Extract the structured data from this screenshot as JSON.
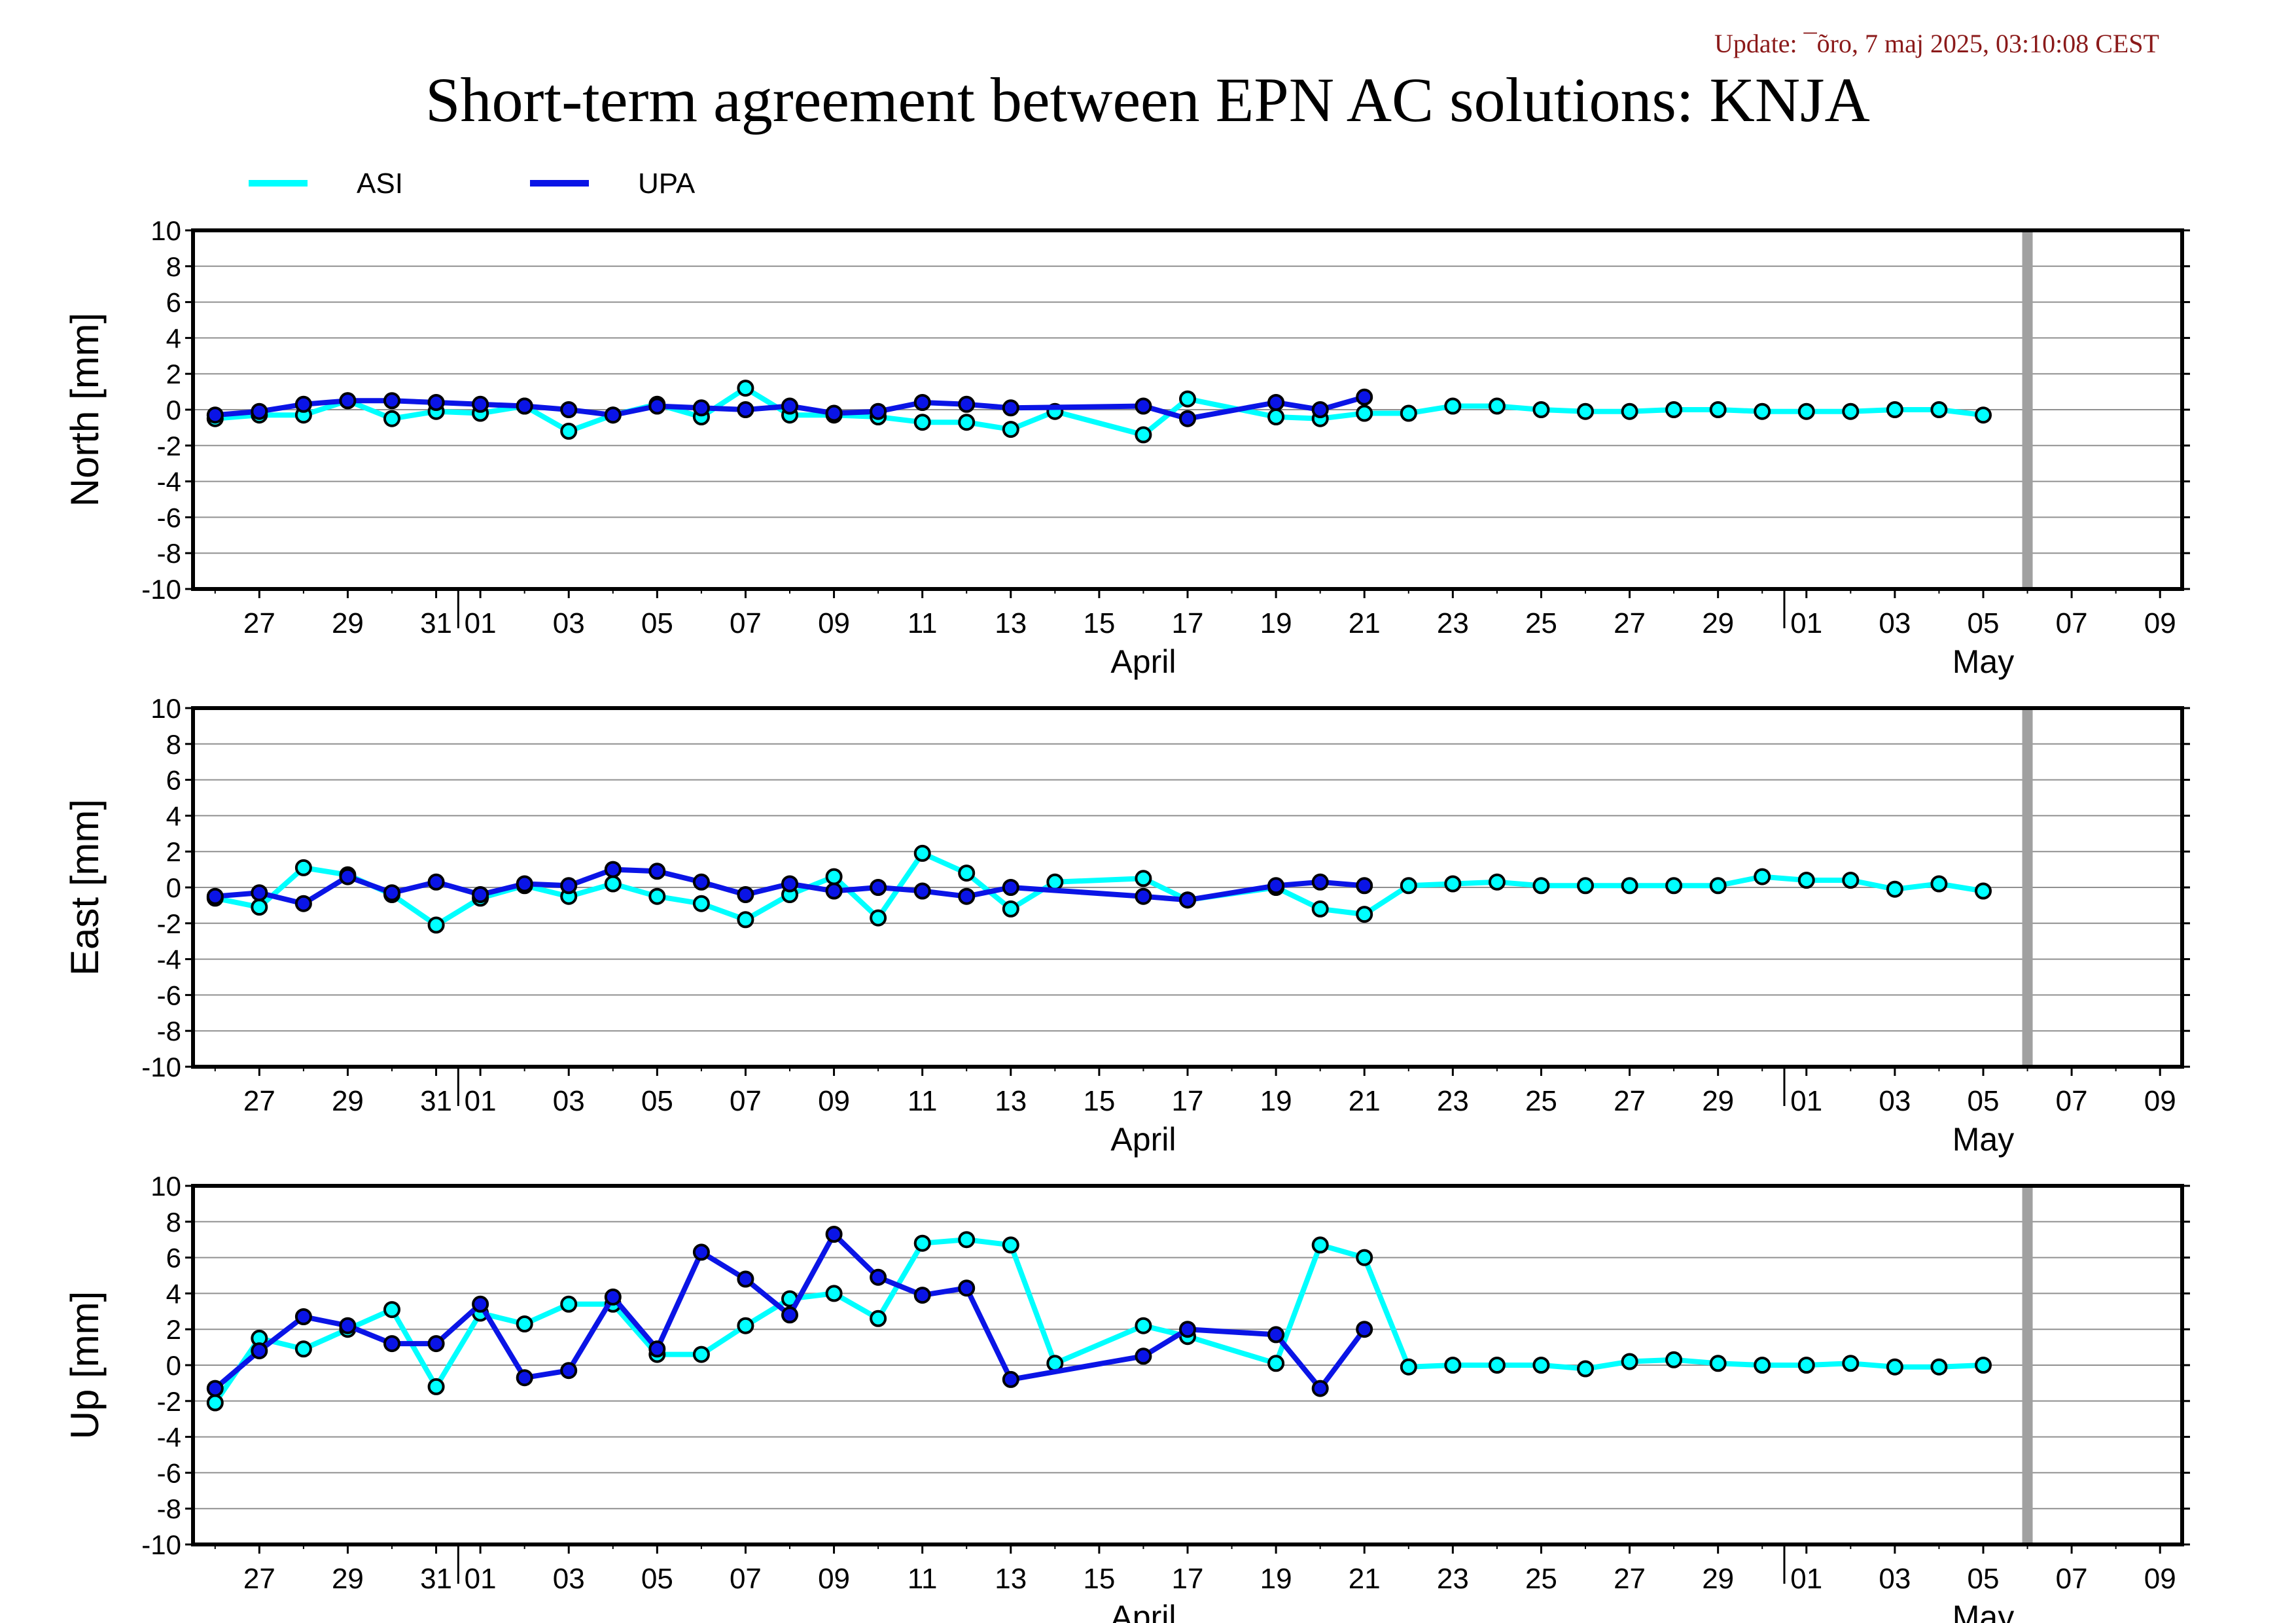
{
  "update_text": "Update: ¯õro, 7 maj 2025, 03:10:08 CEST",
  "title": "Short-term agreement between EPN AC solutions: KNJA",
  "colors": {
    "ASI": "#00ffff",
    "UPA": "#0a14e6",
    "today_marker": "#a0a0a0",
    "update_text": "#8b1a1a"
  },
  "legend": [
    {
      "name": "ASI",
      "color": "#00ffff"
    },
    {
      "name": "UPA",
      "color": "#0a14e6"
    }
  ],
  "chart_data": {
    "type": "line",
    "x_axis": {
      "range_start": "2025-03-25T12:00",
      "range_end": "2025-05-09T12:00",
      "tick_labels": [
        "27",
        "29",
        "31",
        "01",
        "03",
        "05",
        "07",
        "09",
        "11",
        "13",
        "15",
        "17",
        "19",
        "21",
        "23",
        "25",
        "27",
        "29",
        "01",
        "03",
        "05",
        "07",
        "09"
      ],
      "tick_dates": [
        "2025-03-27",
        "2025-03-29",
        "2025-03-31",
        "2025-04-01",
        "2025-04-03",
        "2025-04-05",
        "2025-04-07",
        "2025-04-09",
        "2025-04-11",
        "2025-04-13",
        "2025-04-15",
        "2025-04-17",
        "2025-04-19",
        "2025-04-21",
        "2025-04-23",
        "2025-04-25",
        "2025-04-27",
        "2025-04-29",
        "2025-05-01",
        "2025-05-03",
        "2025-05-05",
        "2025-05-07",
        "2025-05-09"
      ],
      "month_labels": [
        {
          "label": "April",
          "date": "2025-04-16"
        },
        {
          "label": "May",
          "date": "2025-05-05"
        }
      ],
      "month_boundaries": [
        "2025-04-01",
        "2025-05-01"
      ]
    },
    "today_marker": "2025-05-06",
    "ylim": [
      -10,
      10
    ],
    "ytick_labels": [
      "10",
      "8",
      "6",
      "4",
      "2",
      "0",
      "-2",
      "-4",
      "-6",
      "-8",
      "-10"
    ],
    "grid": true,
    "legend_position": "top-left",
    "panels": [
      {
        "ylabel": "North [mm]",
        "series": [
          {
            "name": "ASI",
            "points": [
              [
                "2025-03-26",
                -0.5
              ],
              [
                "2025-03-27",
                -0.3
              ],
              [
                "2025-03-28",
                -0.3
              ],
              [
                "2025-03-29",
                0.5
              ],
              [
                "2025-03-30",
                -0.5
              ],
              [
                "2025-03-31",
                -0.1
              ],
              [
                "2025-04-01",
                -0.2
              ],
              [
                "2025-04-02",
                0.2
              ],
              [
                "2025-04-03",
                -1.2
              ],
              [
                "2025-04-04",
                -0.3
              ],
              [
                "2025-04-05",
                0.3
              ],
              [
                "2025-04-06",
                -0.4
              ],
              [
                "2025-04-07",
                1.2
              ],
              [
                "2025-04-08",
                -0.3
              ],
              [
                "2025-04-09",
                -0.3
              ],
              [
                "2025-04-10",
                -0.4
              ],
              [
                "2025-04-11",
                -0.7
              ],
              [
                "2025-04-12",
                -0.7
              ],
              [
                "2025-04-13",
                -1.1
              ],
              [
                "2025-04-14",
                -0.1
              ],
              [
                "2025-04-16",
                -1.4
              ],
              [
                "2025-04-17",
                0.6
              ],
              [
                "2025-04-19",
                -0.4
              ],
              [
                "2025-04-20",
                -0.5
              ],
              [
                "2025-04-21",
                -0.2
              ],
              [
                "2025-04-22",
                -0.2
              ],
              [
                "2025-04-23",
                0.2
              ],
              [
                "2025-04-24",
                0.2
              ],
              [
                "2025-04-25",
                0.0
              ],
              [
                "2025-04-26",
                -0.1
              ],
              [
                "2025-04-27",
                -0.1
              ],
              [
                "2025-04-28",
                0.0
              ],
              [
                "2025-04-29",
                0.0
              ],
              [
                "2025-04-30",
                -0.1
              ],
              [
                "2025-05-01",
                -0.1
              ],
              [
                "2025-05-02",
                -0.1
              ],
              [
                "2025-05-03",
                0.0
              ],
              [
                "2025-05-04",
                0.0
              ],
              [
                "2025-05-05",
                -0.3
              ]
            ]
          },
          {
            "name": "UPA",
            "points": [
              [
                "2025-03-26",
                -0.3
              ],
              [
                "2025-03-27",
                -0.1
              ],
              [
                "2025-03-28",
                0.3
              ],
              [
                "2025-03-29",
                0.5
              ],
              [
                "2025-03-30",
                0.5
              ],
              [
                "2025-03-31",
                0.4
              ],
              [
                "2025-04-01",
                0.3
              ],
              [
                "2025-04-02",
                0.2
              ],
              [
                "2025-04-03",
                0.0
              ],
              [
                "2025-04-04",
                -0.3
              ],
              [
                "2025-04-05",
                0.2
              ],
              [
                "2025-04-06",
                0.1
              ],
              [
                "2025-04-07",
                0.0
              ],
              [
                "2025-04-08",
                0.2
              ],
              [
                "2025-04-09",
                -0.2
              ],
              [
                "2025-04-10",
                -0.1
              ],
              [
                "2025-04-11",
                0.4
              ],
              [
                "2025-04-12",
                0.3
              ],
              [
                "2025-04-13",
                0.1
              ],
              [
                "2025-04-16",
                0.2
              ],
              [
                "2025-04-17",
                -0.5
              ],
              [
                "2025-04-19",
                0.4
              ],
              [
                "2025-04-20",
                0.0
              ],
              [
                "2025-04-21",
                0.7
              ]
            ]
          }
        ]
      },
      {
        "ylabel": "East [mm]",
        "series": [
          {
            "name": "ASI",
            "points": [
              [
                "2025-03-26",
                -0.6
              ],
              [
                "2025-03-27",
                -1.1
              ],
              [
                "2025-03-28",
                1.1
              ],
              [
                "2025-03-29",
                0.7
              ],
              [
                "2025-03-30",
                -0.4
              ],
              [
                "2025-03-31",
                -2.1
              ],
              [
                "2025-04-01",
                -0.6
              ],
              [
                "2025-04-02",
                0.1
              ],
              [
                "2025-04-03",
                -0.5
              ],
              [
                "2025-04-04",
                0.2
              ],
              [
                "2025-04-05",
                -0.5
              ],
              [
                "2025-04-06",
                -0.9
              ],
              [
                "2025-04-07",
                -1.8
              ],
              [
                "2025-04-08",
                -0.4
              ],
              [
                "2025-04-09",
                0.6
              ],
              [
                "2025-04-10",
                -1.7
              ],
              [
                "2025-04-11",
                1.9
              ],
              [
                "2025-04-12",
                0.8
              ],
              [
                "2025-04-13",
                -1.2
              ],
              [
                "2025-04-14",
                0.3
              ],
              [
                "2025-04-16",
                0.5
              ],
              [
                "2025-04-17",
                -0.7
              ],
              [
                "2025-04-19",
                0.0
              ],
              [
                "2025-04-20",
                -1.2
              ],
              [
                "2025-04-21",
                -1.5
              ],
              [
                "2025-04-22",
                0.1
              ],
              [
                "2025-04-23",
                0.2
              ],
              [
                "2025-04-24",
                0.3
              ],
              [
                "2025-04-25",
                0.1
              ],
              [
                "2025-04-26",
                0.1
              ],
              [
                "2025-04-27",
                0.1
              ],
              [
                "2025-04-28",
                0.1
              ],
              [
                "2025-04-29",
                0.1
              ],
              [
                "2025-04-30",
                0.6
              ],
              [
                "2025-05-01",
                0.4
              ],
              [
                "2025-05-02",
                0.4
              ],
              [
                "2025-05-03",
                -0.1
              ],
              [
                "2025-05-04",
                0.2
              ],
              [
                "2025-05-05",
                -0.2
              ]
            ]
          },
          {
            "name": "UPA",
            "points": [
              [
                "2025-03-26",
                -0.5
              ],
              [
                "2025-03-27",
                -0.3
              ],
              [
                "2025-03-28",
                -0.9
              ],
              [
                "2025-03-29",
                0.6
              ],
              [
                "2025-03-30",
                -0.3
              ],
              [
                "2025-03-31",
                0.3
              ],
              [
                "2025-04-01",
                -0.4
              ],
              [
                "2025-04-02",
                0.2
              ],
              [
                "2025-04-03",
                0.1
              ],
              [
                "2025-04-04",
                1.0
              ],
              [
                "2025-04-05",
                0.9
              ],
              [
                "2025-04-06",
                0.3
              ],
              [
                "2025-04-07",
                -0.4
              ],
              [
                "2025-04-08",
                0.2
              ],
              [
                "2025-04-09",
                -0.2
              ],
              [
                "2025-04-10",
                0.0
              ],
              [
                "2025-04-11",
                -0.2
              ],
              [
                "2025-04-12",
                -0.5
              ],
              [
                "2025-04-13",
                0.0
              ],
              [
                "2025-04-16",
                -0.5
              ],
              [
                "2025-04-17",
                -0.7
              ],
              [
                "2025-04-19",
                0.1
              ],
              [
                "2025-04-20",
                0.3
              ],
              [
                "2025-04-21",
                0.1
              ]
            ]
          }
        ]
      },
      {
        "ylabel": "Up [mm]",
        "series": [
          {
            "name": "ASI",
            "points": [
              [
                "2025-03-26",
                -2.1
              ],
              [
                "2025-03-27",
                1.5
              ],
              [
                "2025-03-28",
                0.9
              ],
              [
                "2025-03-29",
                2.0
              ],
              [
                "2025-03-30",
                3.1
              ],
              [
                "2025-03-31",
                -1.2
              ],
              [
                "2025-04-01",
                2.9
              ],
              [
                "2025-04-02",
                2.3
              ],
              [
                "2025-04-03",
                3.4
              ],
              [
                "2025-04-04",
                3.4
              ],
              [
                "2025-04-05",
                0.6
              ],
              [
                "2025-04-06",
                0.6
              ],
              [
                "2025-04-07",
                2.2
              ],
              [
                "2025-04-08",
                3.7
              ],
              [
                "2025-04-09",
                4.0
              ],
              [
                "2025-04-10",
                2.6
              ],
              [
                "2025-04-11",
                6.8
              ],
              [
                "2025-04-12",
                7.0
              ],
              [
                "2025-04-13",
                6.7
              ],
              [
                "2025-04-14",
                0.1
              ],
              [
                "2025-04-16",
                2.2
              ],
              [
                "2025-04-17",
                1.6
              ],
              [
                "2025-04-19",
                0.1
              ],
              [
                "2025-04-20",
                6.7
              ],
              [
                "2025-04-21",
                6.0
              ],
              [
                "2025-04-22",
                -0.1
              ],
              [
                "2025-04-23",
                0.0
              ],
              [
                "2025-04-24",
                0.0
              ],
              [
                "2025-04-25",
                0.0
              ],
              [
                "2025-04-26",
                -0.2
              ],
              [
                "2025-04-27",
                0.2
              ],
              [
                "2025-04-28",
                0.3
              ],
              [
                "2025-04-29",
                0.1
              ],
              [
                "2025-04-30",
                0.0
              ],
              [
                "2025-05-01",
                0.0
              ],
              [
                "2025-05-02",
                0.1
              ],
              [
                "2025-05-03",
                -0.1
              ],
              [
                "2025-05-04",
                -0.1
              ],
              [
                "2025-05-05",
                0.0
              ]
            ]
          },
          {
            "name": "UPA",
            "points": [
              [
                "2025-03-26",
                -1.3
              ],
              [
                "2025-03-27",
                0.8
              ],
              [
                "2025-03-28",
                2.7
              ],
              [
                "2025-03-29",
                2.2
              ],
              [
                "2025-03-30",
                1.2
              ],
              [
                "2025-03-31",
                1.2
              ],
              [
                "2025-04-01",
                3.4
              ],
              [
                "2025-04-02",
                -0.7
              ],
              [
                "2025-04-03",
                -0.3
              ],
              [
                "2025-04-04",
                3.8
              ],
              [
                "2025-04-05",
                0.9
              ],
              [
                "2025-04-06",
                6.3
              ],
              [
                "2025-04-07",
                4.8
              ],
              [
                "2025-04-08",
                2.8
              ],
              [
                "2025-04-09",
                7.3
              ],
              [
                "2025-04-10",
                4.9
              ],
              [
                "2025-04-11",
                3.9
              ],
              [
                "2025-04-12",
                4.3
              ],
              [
                "2025-04-13",
                -0.8
              ],
              [
                "2025-04-16",
                0.5
              ],
              [
                "2025-04-17",
                2.0
              ],
              [
                "2025-04-19",
                1.7
              ],
              [
                "2025-04-20",
                -1.3
              ],
              [
                "2025-04-21",
                2.0
              ]
            ]
          }
        ]
      }
    ]
  }
}
